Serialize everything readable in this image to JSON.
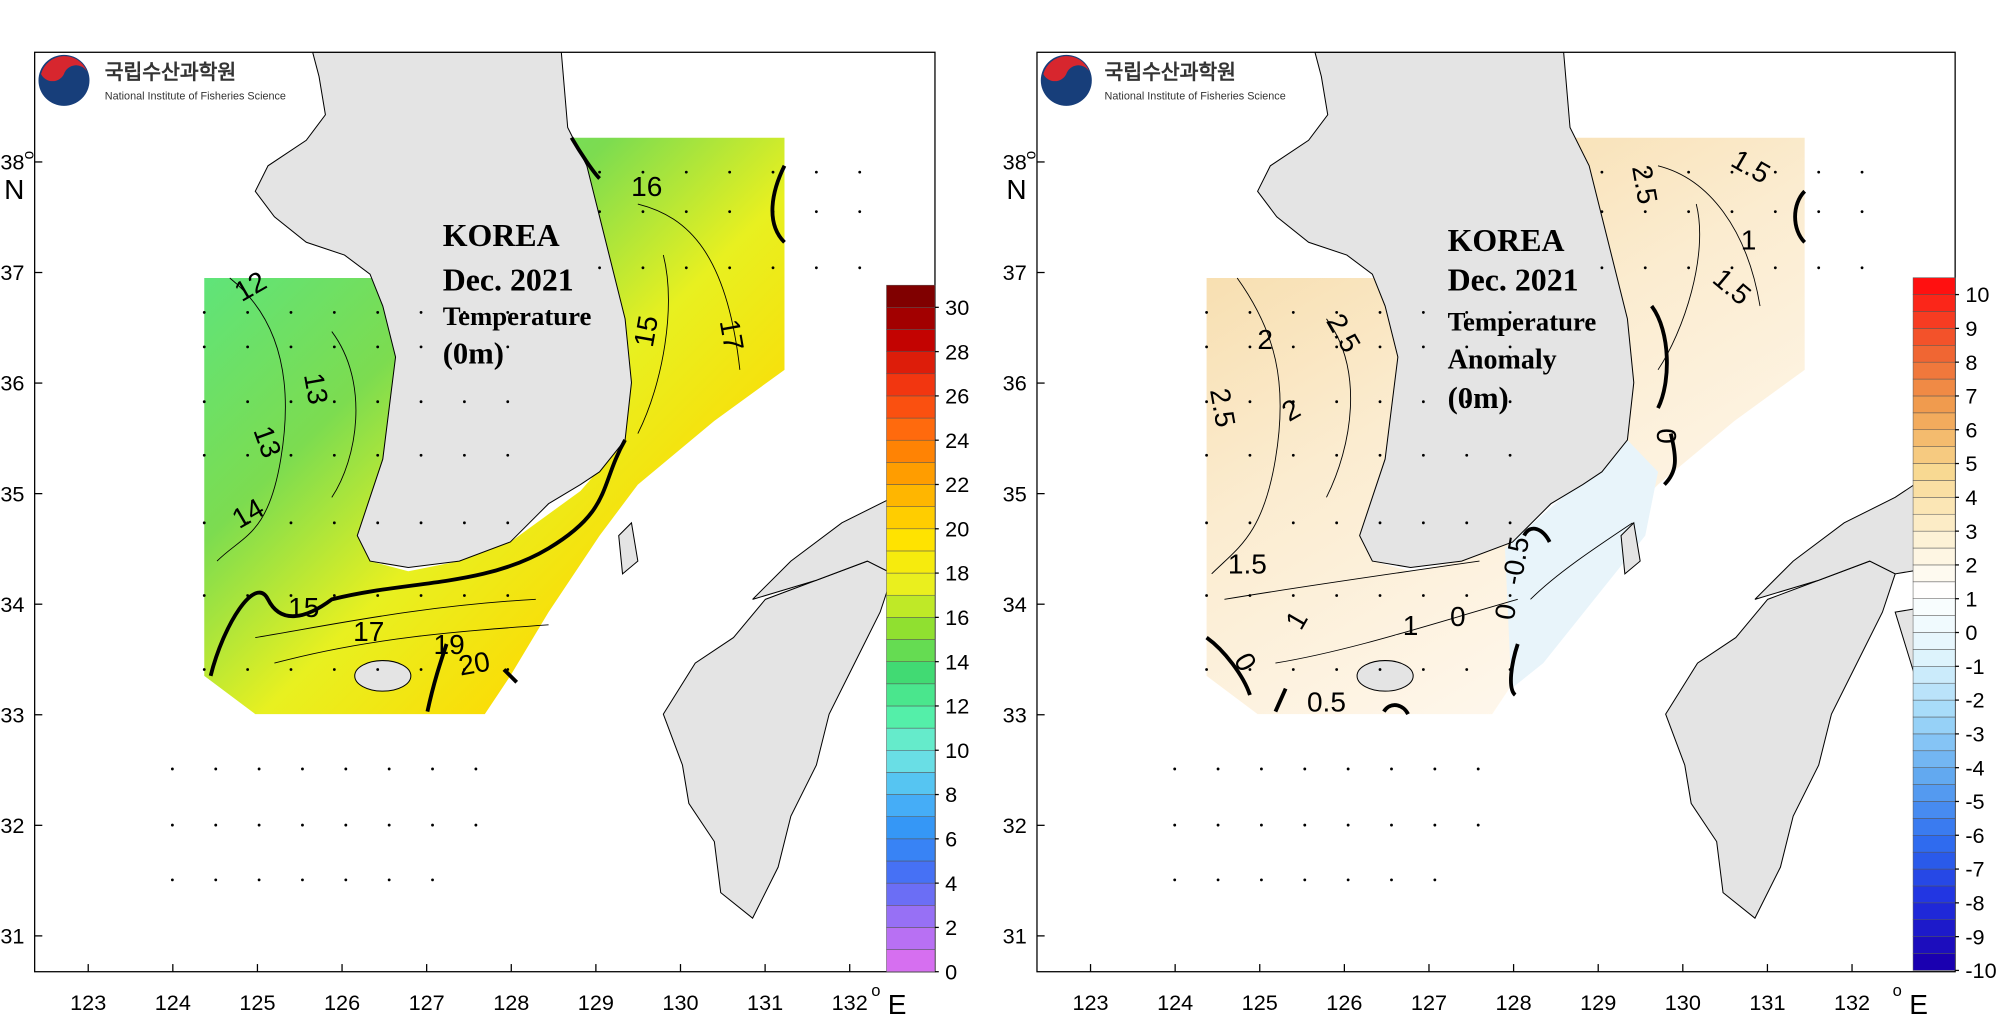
{
  "panels": [
    {
      "logo": {
        "korean": "국립수산과학원",
        "english": "National Institute of Fisheries Science"
      },
      "title_lines": [
        "KOREA",
        "Dec. 2021",
        "Temperature",
        "(0m)"
      ],
      "lon_ticks": [
        123,
        124,
        125,
        126,
        127,
        128,
        129,
        130,
        131,
        132
      ],
      "lat_ticks": [
        31,
        32,
        33,
        34,
        35,
        36,
        37,
        38
      ],
      "lat_degree": "o",
      "lat_unit": "N",
      "lon_degree": "o",
      "lon_unit": "E",
      "colorbar": {
        "labels": [
          0,
          2,
          4,
          6,
          8,
          10,
          12,
          14,
          16,
          18,
          20,
          22,
          24,
          26,
          28,
          30
        ],
        "colors": [
          "#d66ff0",
          "#9d70f5",
          "#4a6cf5",
          "#2f8ff5",
          "#4db8f8",
          "#70e8e0",
          "#50f0a0",
          "#40d870",
          "#90e030",
          "#e8f020",
          "#ffe800",
          "#ffc000",
          "#ff9000",
          "#ff6010",
          "#f03010",
          "#c00000",
          "#800000"
        ]
      },
      "contour_labels": [
        "12",
        "13",
        "13",
        "14",
        "15",
        "17",
        "19",
        "20",
        "16",
        "15",
        "17"
      ]
    },
    {
      "logo": {
        "korean": "국립수산과학원",
        "english": "National Institute of Fisheries Science"
      },
      "title_lines": [
        "KOREA",
        "Dec. 2021",
        "Temperature",
        "Anomaly",
        "(0m)"
      ],
      "lon_ticks": [
        123,
        124,
        125,
        126,
        127,
        128,
        129,
        130,
        131,
        132
      ],
      "lat_ticks": [
        31,
        32,
        33,
        34,
        35,
        36,
        37,
        38
      ],
      "lat_degree": "o",
      "lat_unit": "N",
      "lon_degree": "o",
      "lon_unit": "E",
      "colorbar": {
        "labels": [
          -10,
          -9,
          -8,
          -7,
          -6,
          -5,
          -4,
          -3,
          -2,
          -1,
          0,
          1,
          2,
          3,
          4,
          5,
          6,
          7,
          8,
          9,
          10
        ],
        "colors": [
          "#1a00b0",
          "#2030e0",
          "#3070f0",
          "#60a8f0",
          "#a0d8f8",
          "#e0f4fc",
          "#ffffff",
          "#fdf0d0",
          "#f8d890",
          "#f0a050",
          "#f06030",
          "#ff1010"
        ]
      },
      "contour_labels": [
        "2.5",
        "1.5",
        "1",
        "1.5",
        "2",
        "2.5",
        "2",
        "2.5",
        "1.5",
        "1",
        "1",
        "0",
        "-0.5",
        "0",
        "0",
        "0",
        "0.5"
      ]
    }
  ]
}
